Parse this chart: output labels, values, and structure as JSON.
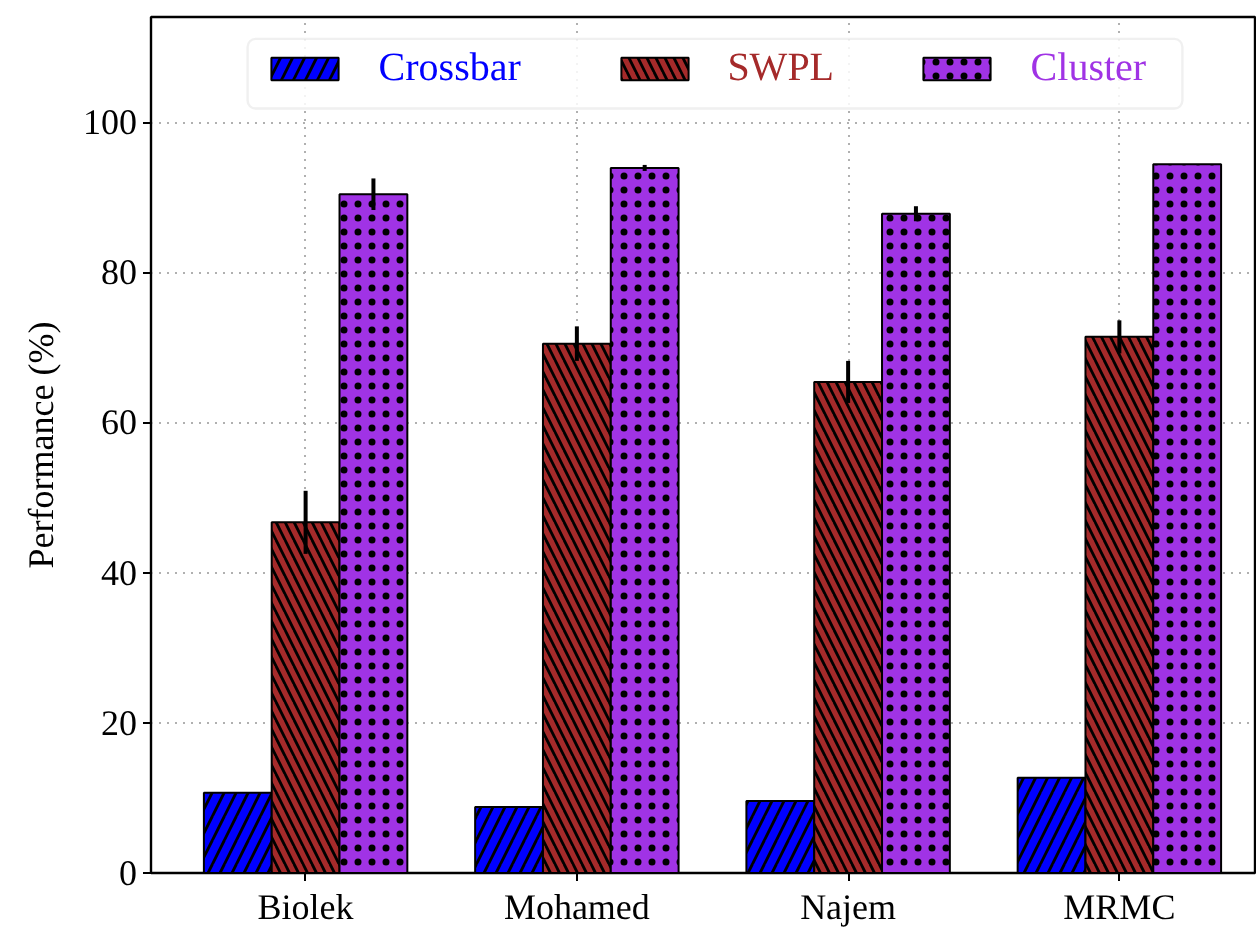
{
  "chart_data": {
    "type": "bar",
    "ylabel": "Performance (%)",
    "categories": [
      "Biolek",
      "Mohamed",
      "Najem",
      "MRMC"
    ],
    "series": [
      {
        "name": "Crossbar",
        "color": "#0000ff",
        "values": [
          10.7,
          8.8,
          9.6,
          12.7
        ]
      },
      {
        "name": "SWPL",
        "color": "#a52a2a",
        "values": [
          46.7,
          70.5,
          65.4,
          71.4
        ],
        "errors": [
          4.2,
          2.3,
          2.8,
          2.2
        ]
      },
      {
        "name": "Cluster",
        "color": "#a033e5",
        "values": [
          90.4,
          93.9,
          87.8,
          94.4
        ],
        "errors": [
          2.1,
          0.4,
          1.0,
          null
        ]
      }
    ],
    "ylim": [
      0,
      114
    ],
    "yticks": [
      0,
      20,
      40,
      60,
      80,
      100
    ],
    "grid": true,
    "legend": "top"
  }
}
